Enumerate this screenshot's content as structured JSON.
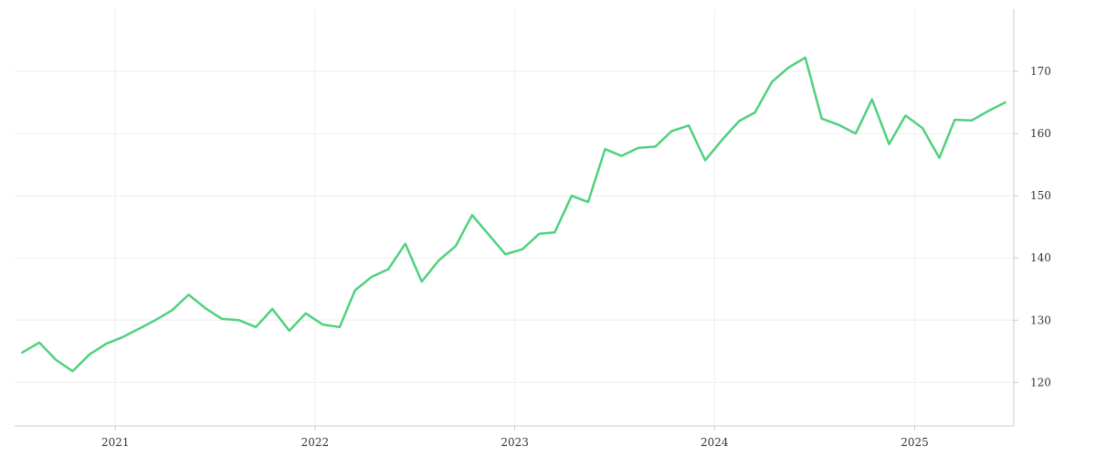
{
  "chart_data": {
    "type": "line",
    "title": "",
    "xlabel": "",
    "ylabel": "",
    "x_axis": {
      "type": "date",
      "range": [
        "2020-07-01",
        "2025-07-01"
      ],
      "ticks": [
        {
          "value": "2021-01-01",
          "label": "2021"
        },
        {
          "value": "2022-01-01",
          "label": "2022"
        },
        {
          "value": "2023-01-01",
          "label": "2023"
        },
        {
          "value": "2024-01-01",
          "label": "2024"
        },
        {
          "value": "2025-01-01",
          "label": "2025"
        }
      ]
    },
    "y_axis": {
      "position": "right",
      "range": [
        113,
        180
      ],
      "ticks": [
        {
          "value": 120,
          "label": "120"
        },
        {
          "value": 130,
          "label": "130"
        },
        {
          "value": 140,
          "label": "140"
        },
        {
          "value": 150,
          "label": "150"
        },
        {
          "value": 160,
          "label": "160"
        },
        {
          "value": 170,
          "label": "170"
        }
      ]
    },
    "grid": true,
    "legend": "none",
    "series": [
      {
        "color": "#4fd17e",
        "x": [
          "2020-07",
          "2020-08",
          "2020-09",
          "2020-10",
          "2020-11",
          "2020-12",
          "2021-01",
          "2021-02",
          "2021-03",
          "2021-04",
          "2021-05",
          "2021-06",
          "2021-07",
          "2021-08",
          "2021-09",
          "2021-10",
          "2021-11",
          "2021-12",
          "2022-01",
          "2022-02",
          "2022-03",
          "2022-04",
          "2022-05",
          "2022-06",
          "2022-07",
          "2022-08",
          "2022-09",
          "2022-10",
          "2022-11",
          "2022-12",
          "2023-01",
          "2023-02",
          "2023-03",
          "2023-04",
          "2023-05",
          "2023-06",
          "2023-07",
          "2023-08",
          "2023-09",
          "2023-10",
          "2023-11",
          "2023-12",
          "2024-01",
          "2024-02",
          "2024-03",
          "2024-04",
          "2024-05",
          "2024-06",
          "2024-07",
          "2024-08",
          "2024-09",
          "2024-10",
          "2024-11",
          "2024-12",
          "2025-01",
          "2025-02",
          "2025-03",
          "2025-04",
          "2025-05",
          "2025-06"
        ],
        "values": [
          124.8,
          126.4,
          123.6,
          121.8,
          124.5,
          126.2,
          127.3,
          128.7,
          130.0,
          131.6,
          134.1,
          131.9,
          130.2,
          130.0,
          128.9,
          131.8,
          128.3,
          131.1,
          129.3,
          128.9,
          134.8,
          137.0,
          138.2,
          142.3,
          136.2,
          139.6,
          141.9,
          146.9,
          143.7,
          140.6,
          141.4,
          143.9,
          144.1,
          150.0,
          149.0,
          157.5,
          156.4,
          157.7,
          157.9,
          160.4,
          161.3,
          155.7,
          159.0,
          162.0,
          163.4,
          168.3,
          170.6,
          172.2,
          162.4,
          161.4,
          160.0,
          165.5,
          158.3,
          162.9,
          160.9,
          156.1,
          162.2,
          162.1,
          163.6,
          165.0
        ]
      }
    ]
  }
}
